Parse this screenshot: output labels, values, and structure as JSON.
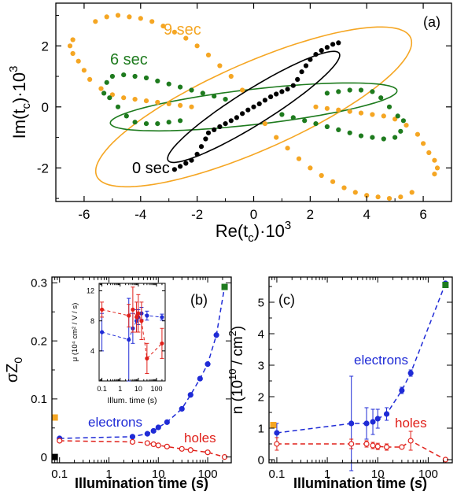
{
  "chart_data": [
    {
      "type": "scatter",
      "panel": "(a)",
      "xlabel_base": "Re(t",
      "xlabel_sub": "c",
      "xlabel_tail": ")·10",
      "xlabel_sup": "3",
      "ylabel_base": "Im(t",
      "ylabel_sub": "c",
      "ylabel_tail": ")·10",
      "ylabel_sup": "3",
      "xlim": [
        -7,
        7
      ],
      "ylim": [
        -3.1,
        3.4
      ],
      "xticks": [
        -6,
        -4,
        -2,
        0,
        2,
        4,
        6
      ],
      "yticks": [
        -2,
        0,
        2
      ],
      "series": [
        {
          "name": "0 sec",
          "color": "#000000",
          "ellipse": {
            "a": 3.5,
            "b": 0.58,
            "angle_deg": 30
          },
          "points": [
            [
              -2.8,
              -2.05
            ],
            [
              -2.6,
              -1.95
            ],
            [
              -2.4,
              -1.85
            ],
            [
              -2.2,
              -1.75
            ],
            [
              -2.0,
              -1.55
            ],
            [
              -1.85,
              -1.3
            ],
            [
              -1.7,
              -1.05
            ],
            [
              -1.6,
              -0.85
            ],
            [
              -1.4,
              -0.75
            ],
            [
              -1.2,
              -0.65
            ],
            [
              -1.0,
              -0.55
            ],
            [
              -0.8,
              -0.45
            ],
            [
              -0.6,
              -0.35
            ],
            [
              -0.4,
              -0.22
            ],
            [
              -0.2,
              -0.1
            ],
            [
              0,
              0
            ],
            [
              0.2,
              0.1
            ],
            [
              0.4,
              0.22
            ],
            [
              0.6,
              0.33
            ],
            [
              0.8,
              0.42
            ],
            [
              1.0,
              0.5
            ],
            [
              1.2,
              0.58
            ],
            [
              1.4,
              0.7
            ],
            [
              1.55,
              0.9
            ],
            [
              1.7,
              1.15
            ],
            [
              1.85,
              1.35
            ],
            [
              2.0,
              1.55
            ],
            [
              2.2,
              1.72
            ],
            [
              2.4,
              1.85
            ],
            [
              2.6,
              1.95
            ],
            [
              2.8,
              2.05
            ],
            [
              3.0,
              2.1
            ]
          ]
        },
        {
          "name": "6 sec",
          "color": "#1e7b1e",
          "ellipse": {
            "a": 5.1,
            "b": 0.58,
            "angle_deg": 6
          },
          "points": [
            [
              -5.3,
              0.45
            ],
            [
              -5.1,
              0.3
            ],
            [
              -4.8,
              0.0
            ],
            [
              -4.5,
              -0.3
            ],
            [
              -4.2,
              -0.5
            ],
            [
              -3.8,
              -0.55
            ],
            [
              -3.4,
              -0.55
            ],
            [
              -3.0,
              -0.5
            ],
            [
              -2.6,
              -0.45
            ],
            [
              -5.2,
              0.8
            ],
            [
              -5.0,
              1.0
            ],
            [
              -4.6,
              1.05
            ],
            [
              -4.2,
              1.0
            ],
            [
              -3.8,
              0.95
            ],
            [
              -3.4,
              0.85
            ],
            [
              -3.0,
              0.75
            ],
            [
              -2.6,
              0.65
            ],
            [
              -2.2,
              0.55
            ],
            [
              -1.8,
              0.45
            ],
            [
              -1.4,
              0.35
            ],
            [
              -1.0,
              0.25
            ],
            [
              1.0,
              -0.25
            ],
            [
              1.4,
              -0.35
            ],
            [
              1.8,
              -0.45
            ],
            [
              2.2,
              -0.55
            ],
            [
              2.6,
              -0.65
            ],
            [
              3.0,
              -0.75
            ],
            [
              3.4,
              -0.85
            ],
            [
              3.8,
              -0.95
            ],
            [
              4.2,
              -1.0
            ],
            [
              4.6,
              -1.05
            ],
            [
              5.0,
              -1.0
            ],
            [
              5.2,
              -0.8
            ],
            [
              5.3,
              -0.45
            ],
            [
              5.1,
              -0.3
            ],
            [
              4.8,
              0.0
            ],
            [
              4.5,
              0.3
            ],
            [
              4.2,
              0.5
            ],
            [
              3.8,
              0.55
            ],
            [
              3.4,
              0.55
            ],
            [
              3.0,
              0.5
            ],
            [
              2.6,
              0.45
            ]
          ]
        },
        {
          "name": "9 sec",
          "color": "#f5a623",
          "ellipse": {
            "a": 6.0,
            "b": 1.45,
            "angle_deg": 22
          },
          "points": [
            [
              -6.4,
              2.2
            ],
            [
              -6.5,
              2.0
            ],
            [
              -6.4,
              1.75
            ],
            [
              -6.2,
              1.5
            ],
            [
              -6.0,
              1.2
            ],
            [
              -5.8,
              0.9
            ],
            [
              -5.4,
              0.6
            ],
            [
              -5.0,
              0.4
            ],
            [
              -4.6,
              0.3
            ],
            [
              -4.2,
              0.25
            ],
            [
              -3.8,
              0.2
            ],
            [
              -3.4,
              0.15
            ],
            [
              -3.0,
              0.1
            ],
            [
              -2.6,
              0.05
            ],
            [
              -2.2,
              0.0
            ],
            [
              -5.6,
              2.8
            ],
            [
              -5.2,
              2.95
            ],
            [
              -4.8,
              3.0
            ],
            [
              -4.4,
              2.95
            ],
            [
              -4.0,
              2.9
            ],
            [
              -3.6,
              2.8
            ],
            [
              -3.2,
              2.65
            ],
            [
              -2.8,
              2.45
            ],
            [
              -2.4,
              2.25
            ],
            [
              -2.0,
              2.0
            ],
            [
              -1.6,
              1.7
            ],
            [
              -1.2,
              1.35
            ],
            [
              -0.8,
              1.0
            ],
            [
              -0.4,
              0.55
            ],
            [
              6.4,
              -2.2
            ],
            [
              6.5,
              -2.0
            ],
            [
              6.4,
              -1.75
            ],
            [
              6.2,
              -1.5
            ],
            [
              6.0,
              -1.2
            ],
            [
              5.8,
              -0.9
            ],
            [
              5.4,
              -0.6
            ],
            [
              5.0,
              -0.4
            ],
            [
              4.6,
              -0.3
            ],
            [
              4.2,
              -0.25
            ],
            [
              3.8,
              -0.2
            ],
            [
              3.4,
              -0.15
            ],
            [
              3.0,
              -0.1
            ],
            [
              2.6,
              -0.05
            ],
            [
              2.2,
              0.0
            ],
            [
              5.6,
              -2.8
            ],
            [
              5.2,
              -2.95
            ],
            [
              4.8,
              -3.0
            ],
            [
              4.4,
              -2.95
            ],
            [
              4.0,
              -2.9
            ],
            [
              3.6,
              -2.8
            ],
            [
              3.2,
              -2.65
            ],
            [
              2.8,
              -2.45
            ],
            [
              2.4,
              -2.25
            ],
            [
              2.0,
              -2.0
            ],
            [
              1.6,
              -1.7
            ],
            [
              1.2,
              -1.35
            ],
            [
              0.8,
              -1.0
            ],
            [
              0.4,
              -0.55
            ]
          ]
        }
      ]
    },
    {
      "type": "line",
      "panel": "(b)",
      "ylabel_base": "σZ",
      "ylabel_sub": "0",
      "xlabel": "Illumination time (s)",
      "xscale": "log",
      "xlim": [
        0.07,
        300
      ],
      "ylim": [
        -0.01,
        0.31
      ],
      "xtick_values": [
        0.1,
        1,
        10,
        100
      ],
      "xtick_labels": [
        "0.1",
        "1",
        "10",
        "100"
      ],
      "ytick_values": [
        0,
        0.1,
        0.2,
        0.3
      ],
      "ytick_labels": [
        "0",
        "0.1",
        "0.2",
        "0.3"
      ],
      "series": [
        {
          "name": "electrons",
          "color": "#1f2bd6",
          "marker": "filled",
          "x": [
            0.1,
            3,
            6,
            8,
            10,
            15,
            30,
            45,
            70,
            100,
            150,
            220
          ],
          "y": [
            0.032,
            0.035,
            0.04,
            0.045,
            0.051,
            0.06,
            0.083,
            0.107,
            0.135,
            0.16,
            0.21,
            0.293
          ]
        },
        {
          "name": "holes",
          "color": "#e0201a",
          "marker": "open",
          "x": [
            0.1,
            3,
            6,
            8,
            10,
            15,
            30,
            45,
            100,
            220
          ],
          "y": [
            0.028,
            0.026,
            0.024,
            0.022,
            0.02,
            0.018,
            0.014,
            0.012,
            0.008,
            0.0
          ]
        }
      ],
      "extra_points": [
        {
          "x": 0.08,
          "y": 0.068,
          "color": "#f5a623"
        },
        {
          "x": 0.08,
          "y": 0.0,
          "color": "#000000"
        },
        {
          "x": 220,
          "y": 0.293,
          "color": "#1e7b1e"
        }
      ],
      "inset": {
        "ylabel": "μ (10⁴ cm² / V / s)",
        "xlabel": "Illum. time (s)",
        "xscale": "log",
        "xlim": [
          0.07,
          300
        ],
        "ylim": [
          0,
          13
        ],
        "xtick_values": [
          0.1,
          1,
          10,
          100
        ],
        "xtick_labels": [
          "0.1",
          "1",
          "10",
          "100"
        ],
        "ytick_values": [
          4,
          8,
          12
        ],
        "ytick_labels": [
          "4",
          "8",
          "12"
        ],
        "series": [
          {
            "name": "electrons",
            "color": "#1f2bd6",
            "x": [
              0.1,
              3,
              5,
              8,
              10,
              15,
              30,
              200
            ],
            "y": [
              6.5,
              5.5,
              7.0,
              8.0,
              8.5,
              9.0,
              8.7,
              8.5
            ],
            "err": [
              2.5,
              5.5,
              2.0,
              1.5,
              1.0,
              0.8,
              0.6,
              0.4
            ]
          },
          {
            "name": "holes",
            "color": "#e0201a",
            "x": [
              0.1,
              3,
              5,
              8,
              10,
              15,
              30,
              200
            ],
            "y": [
              9.5,
              8.7,
              9.5,
              8.5,
              9.0,
              8.0,
              3.0,
              5.0
            ],
            "err": [
              1.0,
              1.5,
              3.0,
              2.0,
              2.5,
              2.5,
              2.0,
              2.0
            ]
          }
        ]
      }
    },
    {
      "type": "line",
      "panel": "(c)",
      "ylabel_base": "n (10",
      "ylabel_sup1": "10",
      "ylabel_mid": " / cm",
      "ylabel_sup2": "2",
      "ylabel_tail": ")",
      "xlabel": "Illumination time (s)",
      "xscale": "log",
      "xlim": [
        0.07,
        300
      ],
      "ylim": [
        -0.1,
        5.8
      ],
      "xtick_values": [
        0.1,
        1,
        10,
        100
      ],
      "xtick_labels": [
        "0.1",
        "1",
        "10",
        "100"
      ],
      "ytick_values": [
        0,
        1,
        2,
        3,
        4,
        5
      ],
      "ytick_labels": [
        "0",
        "1",
        "2",
        "3",
        "4",
        "5"
      ],
      "series": [
        {
          "name": "electrons",
          "color": "#1f2bd6",
          "marker": "filled",
          "x": [
            0.1,
            3,
            6,
            8,
            10,
            15,
            30,
            45,
            220
          ],
          "y": [
            0.85,
            1.15,
            1.15,
            1.2,
            1.3,
            1.45,
            2.2,
            2.75,
            5.6
          ],
          "err": [
            0.3,
            1.5,
            0.5,
            0.4,
            0.3,
            0.2,
            0.1,
            0.1,
            0.05
          ]
        },
        {
          "name": "holes",
          "color": "#e0201a",
          "marker": "open",
          "x": [
            0.1,
            3,
            6,
            8,
            10,
            15,
            30,
            45,
            220
          ],
          "y": [
            0.5,
            0.5,
            0.5,
            0.45,
            0.42,
            0.4,
            0.4,
            0.6,
            0.0
          ],
          "err": [
            0.2,
            0.15,
            0.1,
            0.1,
            0.1,
            0.1,
            0.05,
            0.3,
            0.05
          ]
        }
      ],
      "extra_points": [
        {
          "x": 0.085,
          "y": 1.1,
          "color": "#f5a623"
        },
        {
          "x": 220,
          "y": 5.55,
          "color": "#1e7b1e"
        }
      ]
    }
  ]
}
